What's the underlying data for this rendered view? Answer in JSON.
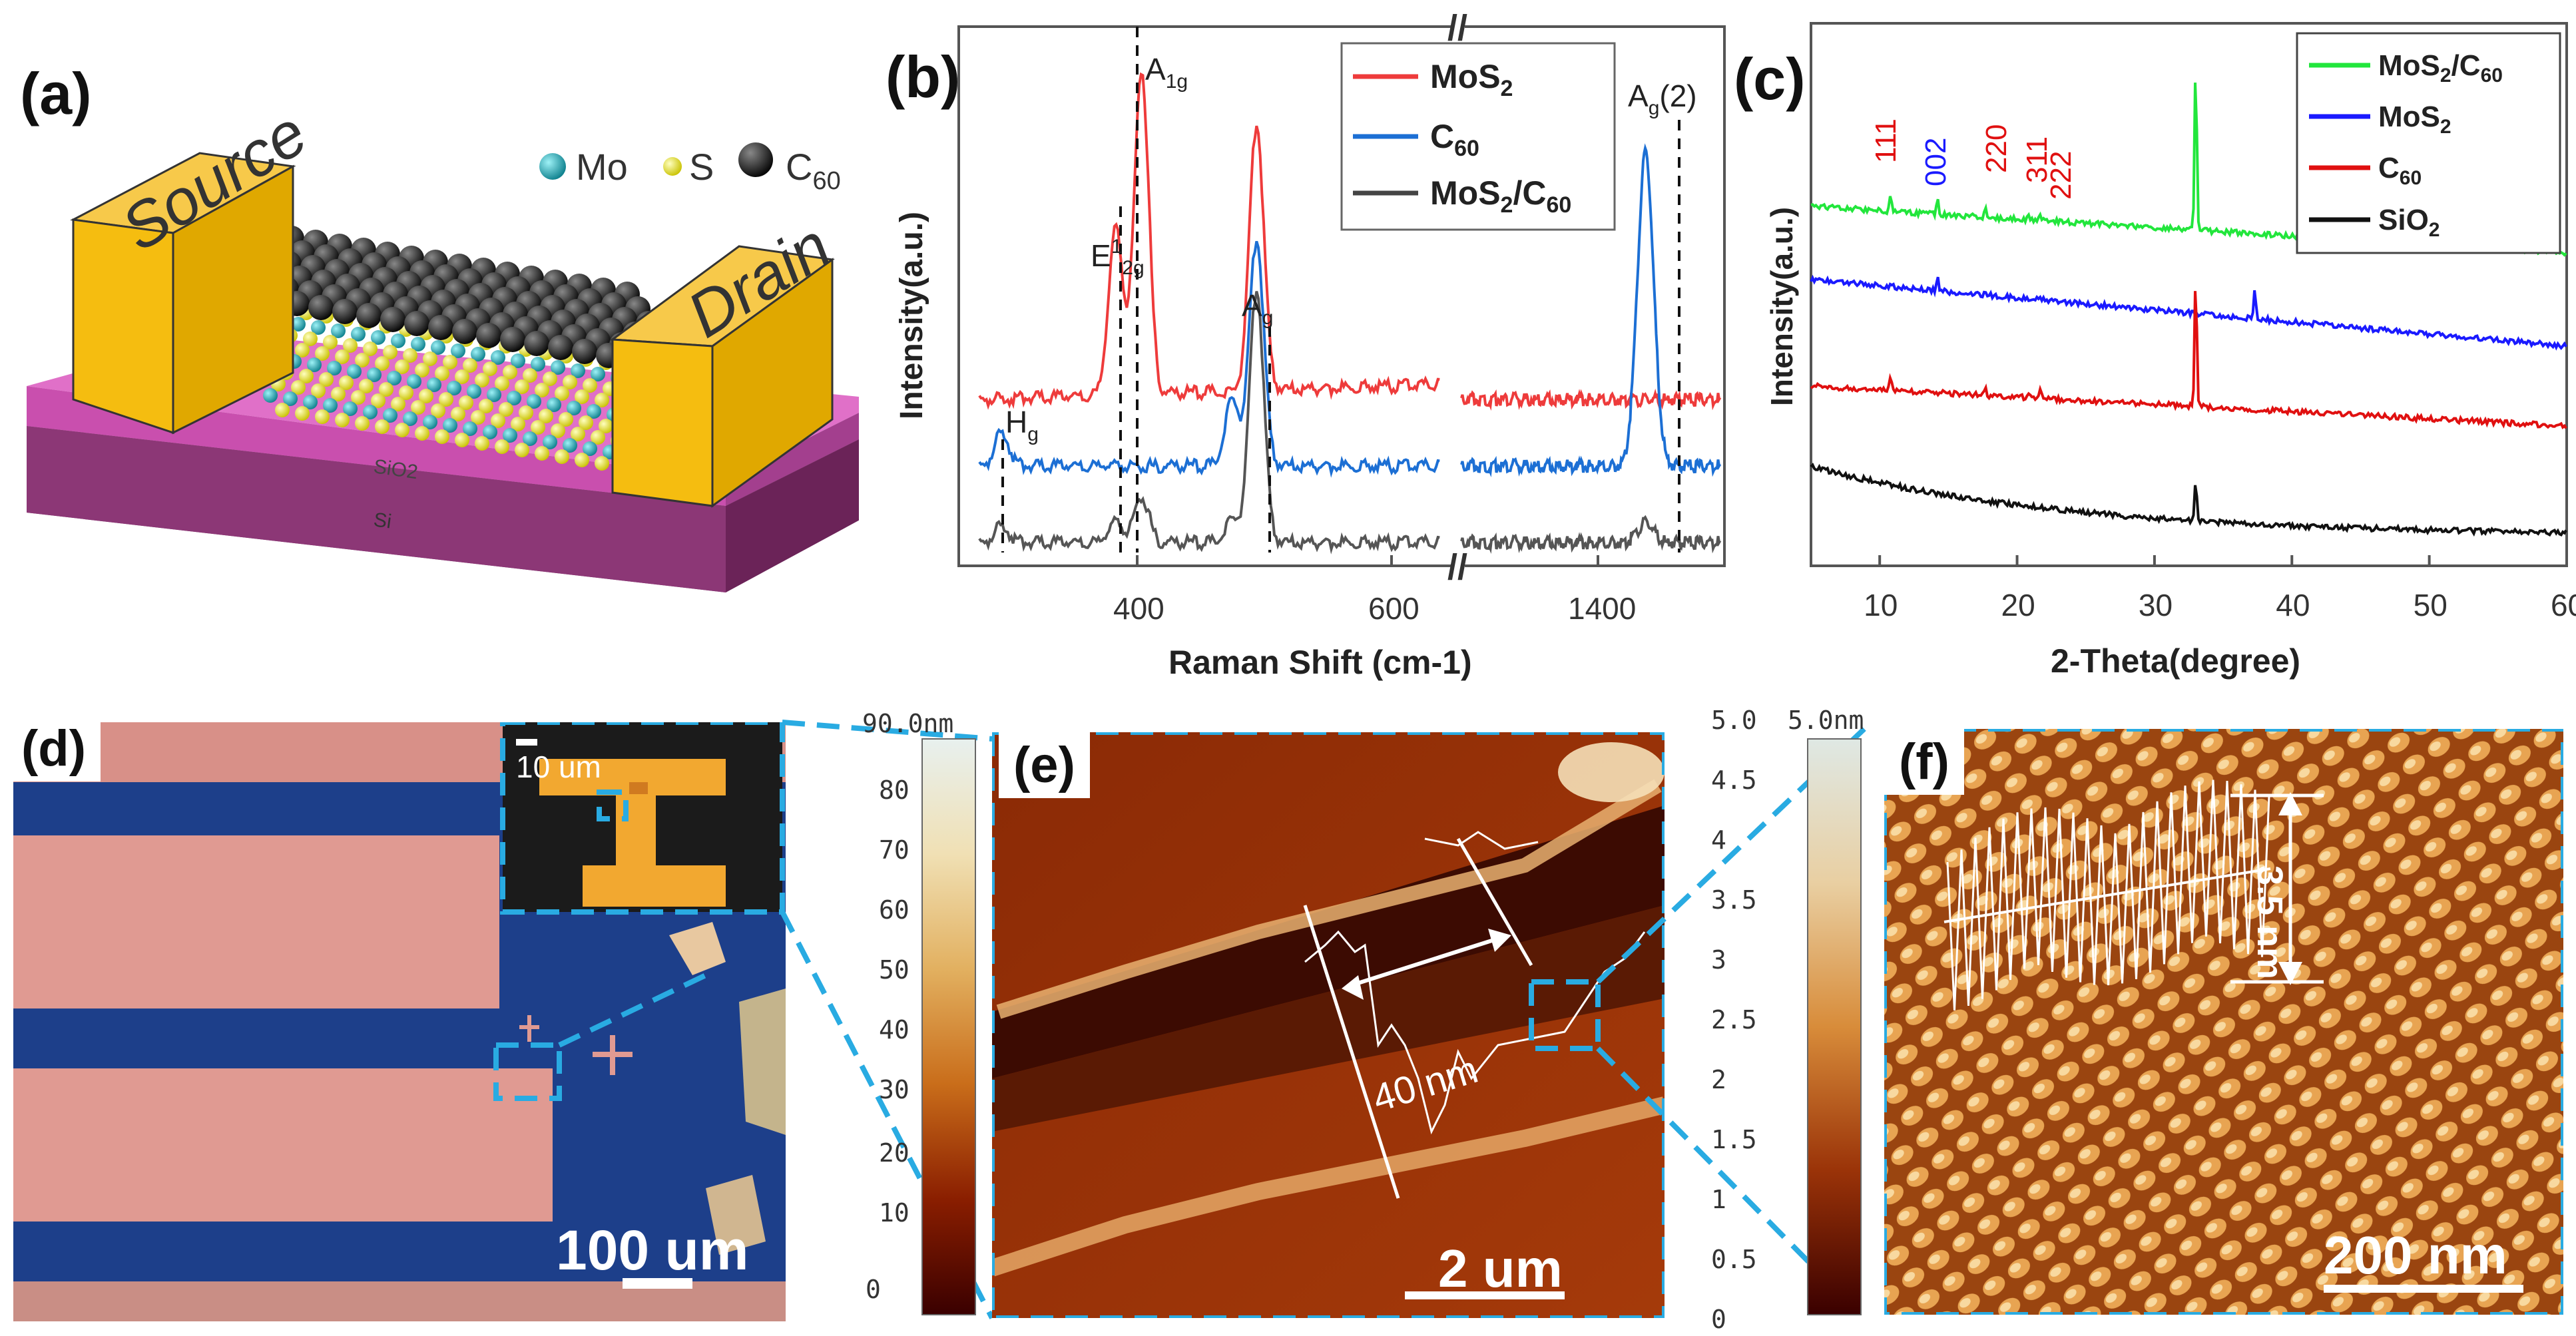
{
  "panel_a": {
    "label": "(a)",
    "legend": [
      {
        "symbol_color": "#1fa3b0",
        "text": "Mo"
      },
      {
        "symbol_color": "#f2ec3c",
        "text": "S"
      },
      {
        "symbol_color": "#222222",
        "text": "C60"
      }
    ],
    "source_label": "Source",
    "drain_label": "Drain",
    "layer_sio2": "SiO2",
    "layer_si": "Si"
  },
  "panel_b": {
    "label": "(b)",
    "ylabel": "Intensity(a.u.)",
    "xlabel": "Raman Shift (cm-1)",
    "xticks_left": [
      "400",
      "600"
    ],
    "xticks_left_extra": [
      "400"
    ],
    "xticks_right": [
      "1400"
    ],
    "legend": [
      {
        "text": "MoS2",
        "color": "#ee3b3b"
      },
      {
        "text": "C60",
        "color": "#1c6fd4"
      },
      {
        "text": "MoS2/C60",
        "color": "#444444"
      }
    ],
    "peak_labels": {
      "e12g": "E12g",
      "a1g": "A1g",
      "ag": "Ag",
      "hg": "Hg",
      "ag2": "Ag(2)"
    }
  },
  "panel_c": {
    "label": "(c)",
    "ylabel": "Intensity(a.u.)",
    "xlabel": "2-Theta(degree)",
    "xticks": [
      "10",
      "20",
      "30",
      "40",
      "50",
      "60"
    ],
    "legend": [
      {
        "text": "MoS2/C60",
        "color": "#22e63c"
      },
      {
        "text": "MoS2",
        "color": "#1a1aff"
      },
      {
        "text": "C60",
        "color": "#e01010"
      },
      {
        "text": "SiO2",
        "color": "#111111"
      }
    ],
    "peak_labels": [
      {
        "text": "111",
        "color": "#e01010"
      },
      {
        "text": "002",
        "color": "#1a1aff"
      },
      {
        "text": "220",
        "color": "#e01010"
      },
      {
        "text": "311",
        "color": "#e01010"
      },
      {
        "text": "222",
        "color": "#e01010"
      }
    ]
  },
  "panel_d": {
    "label": "(d)",
    "inset_scale": "10 um",
    "scale": "100 um"
  },
  "colorbar_e": {
    "top": "90.0nm",
    "ticks": [
      "80",
      "70",
      "60",
      "50",
      "40",
      "30",
      "20",
      "10",
      "0"
    ]
  },
  "panel_e": {
    "label": "(e)",
    "measure": "40 nm",
    "scale": "2 um"
  },
  "colorbar_f": {
    "left_ticks": [
      "5.0",
      "4.5",
      "4",
      "3.5",
      "3",
      "2.5",
      "2",
      "1.5",
      "1",
      "0.5",
      "0"
    ],
    "top": "5.0nm"
  },
  "panel_f": {
    "label": "(f)",
    "measure": "3.5 nm",
    "scale": "200 nm"
  },
  "chart_data": [
    {
      "type": "line",
      "xlabel": "Raman Shift (cm-1)",
      "ylabel": "Intensity(a.u.)",
      "series": [
        {
          "name": "MoS2",
          "peaks": [
            {
              "x": 383,
              "label": "E12g"
            },
            {
              "x": 408,
              "label": "A1g"
            },
            {
              "x": 520
            }
          ]
        },
        {
          "name": "C60",
          "peaks": [
            {
              "x": 272,
              "label": "Hg"
            },
            {
              "x": 496,
              "label": "Ag"
            },
            {
              "x": 520
            },
            {
              "x": 1469,
              "label": "Ag(2)"
            }
          ]
        },
        {
          "name": "MoS2/C60",
          "peaks": [
            {
              "x": 272
            },
            {
              "x": 383
            },
            {
              "x": 408
            },
            {
              "x": 496
            },
            {
              "x": 520
            },
            {
              "x": 1469
            }
          ]
        }
      ]
    },
    {
      "type": "line",
      "xlabel": "2-Theta(degree)",
      "ylabel": "Intensity(a.u.)",
      "xlim": [
        5,
        60
      ],
      "series": [
        {
          "name": "MoS2/C60",
          "peaks": [
            10.8,
            14.2,
            17.7,
            20.8,
            21.7,
            33.0
          ]
        },
        {
          "name": "MoS2",
          "peaks": [
            14.2,
            37.3
          ]
        },
        {
          "name": "C60",
          "peaks": [
            10.8,
            17.7,
            20.8,
            21.7,
            33.0
          ]
        },
        {
          "name": "SiO2",
          "peaks": [
            33.0
          ]
        }
      ]
    }
  ]
}
